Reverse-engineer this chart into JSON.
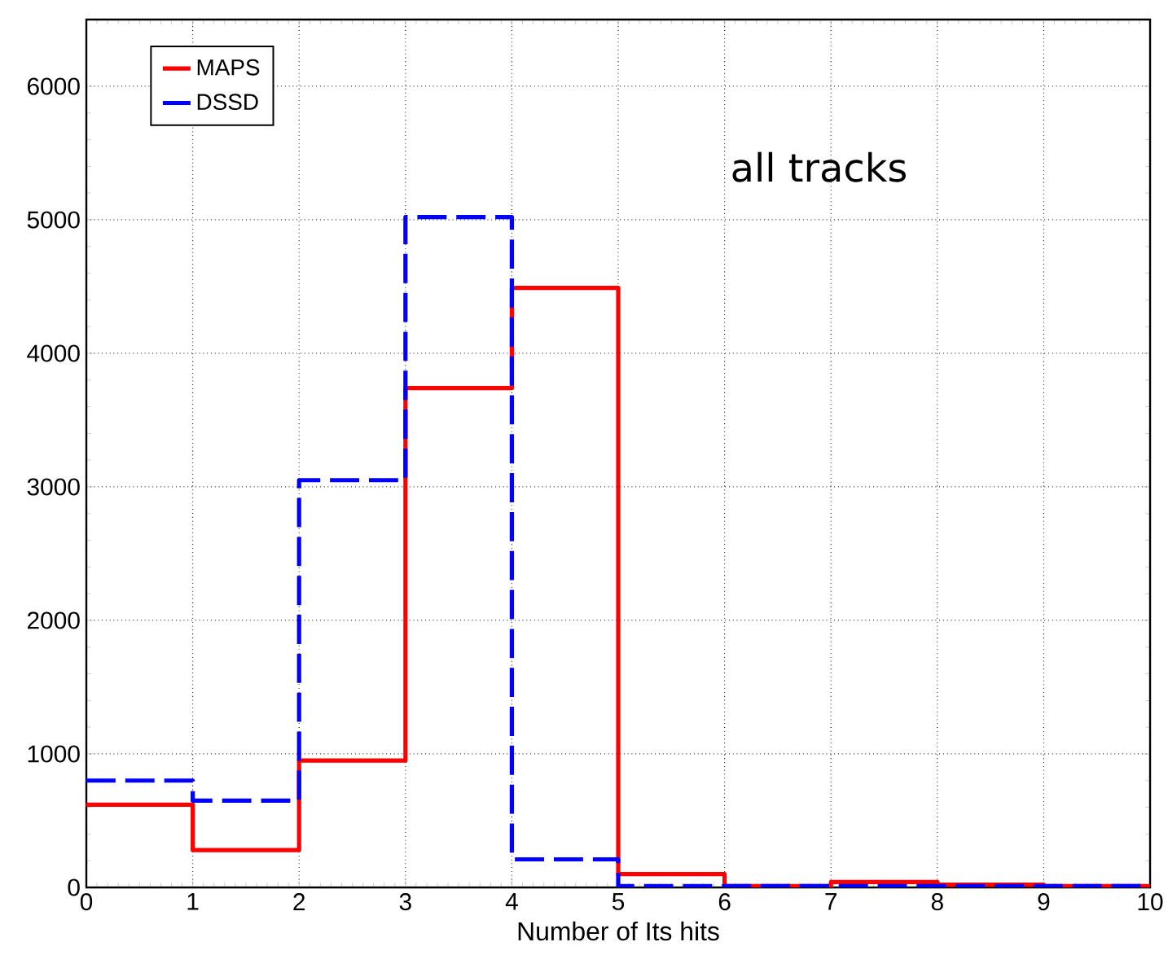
{
  "chart_data": {
    "type": "histogram",
    "xlabel": "Number of Its hits",
    "annotations": [
      "all tracks"
    ],
    "bins": [
      0,
      1,
      2,
      3,
      4,
      5,
      6,
      7,
      8,
      9,
      10
    ],
    "series": [
      {
        "name": "MAPS",
        "color": "#ff0000",
        "line_style": "solid",
        "values": [
          620,
          280,
          950,
          3740,
          4490,
          100,
          10,
          40,
          20,
          10
        ]
      },
      {
        "name": "DSSD",
        "color": "#0000ff",
        "line_style": "dashed",
        "values": [
          800,
          650,
          3050,
          5020,
          210,
          10,
          10,
          10,
          10,
          10
        ]
      }
    ],
    "xlim": [
      0,
      10
    ],
    "ylim": [
      0,
      6500
    ],
    "xticks": [
      0,
      1,
      2,
      3,
      4,
      5,
      6,
      7,
      8,
      9,
      10
    ],
    "yticks": [
      0,
      1000,
      2000,
      3000,
      4000,
      5000,
      6000
    ],
    "grid": true,
    "legend": "top left"
  }
}
